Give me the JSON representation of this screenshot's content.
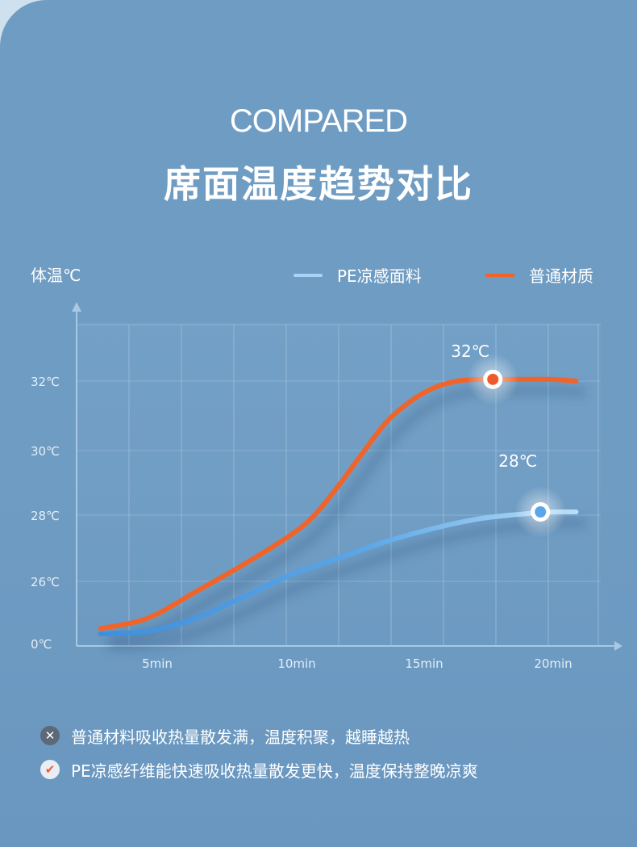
{
  "heading": {
    "en": "COMPARED",
    "cn": "席面温度趋势对比"
  },
  "legend": {
    "pe_label": "PE凉感面料",
    "normal_label": "普通材质",
    "pe_color": "#a8d3f6",
    "normal_color": "#f0642a"
  },
  "chart_data": {
    "type": "line",
    "ylabel": "体温℃",
    "xlabel": "",
    "x_tick_labels": [
      "5min",
      "10min",
      "15min",
      "20min"
    ],
    "x_ticks": [
      5,
      10,
      15,
      20
    ],
    "y_tick_labels": [
      "0℃",
      "26℃",
      "28℃",
      "30℃",
      "32℃"
    ],
    "y_ticks": [
      0,
      26,
      28,
      30,
      32
    ],
    "grid": true,
    "legend_position": "top-right",
    "series": [
      {
        "name": "PE凉感面料",
        "color": "#3f8fdd",
        "x": [
          1,
          3,
          5,
          7,
          9,
          11,
          13,
          15,
          17,
          19,
          20,
          21
        ],
        "y": [
          25.0,
          25.05,
          25.3,
          25.7,
          26.2,
          26.7,
          27.2,
          27.6,
          27.9,
          28.05,
          28.1,
          28.1
        ]
      },
      {
        "name": "普通材质",
        "color": "#f0642a",
        "x": [
          1,
          3,
          5,
          7,
          9,
          10,
          11,
          12,
          13,
          14,
          15,
          16,
          17,
          18,
          19,
          20,
          21
        ],
        "y": [
          25.1,
          25.3,
          25.8,
          26.5,
          27.4,
          28.0,
          28.9,
          29.9,
          30.8,
          31.4,
          31.8,
          32.0,
          32.05,
          32.05,
          32.05,
          32.05,
          32.0
        ]
      }
    ],
    "annotations": [
      {
        "text": "32℃",
        "x": 17.5,
        "y": 32.05,
        "series": "普通材质"
      },
      {
        "text": "28℃",
        "x": 19.5,
        "y": 28.1,
        "series": "PE凉感面料"
      }
    ]
  },
  "notes": [
    {
      "icon": "cross-icon",
      "text": "普通材料吸收热量散发满，温度积聚，越睡越热",
      "icon_bg": "#5d6878",
      "icon_fg": "#ffffff"
    },
    {
      "icon": "check-icon",
      "text": "PE凉感纤维能快速吸收热量散发更快，温度保持整晚凉爽",
      "icon_bg": "#e8eef4",
      "icon_fg": "#ef5a2c"
    }
  ],
  "icons": {
    "cross": "✕",
    "check": "✔"
  }
}
